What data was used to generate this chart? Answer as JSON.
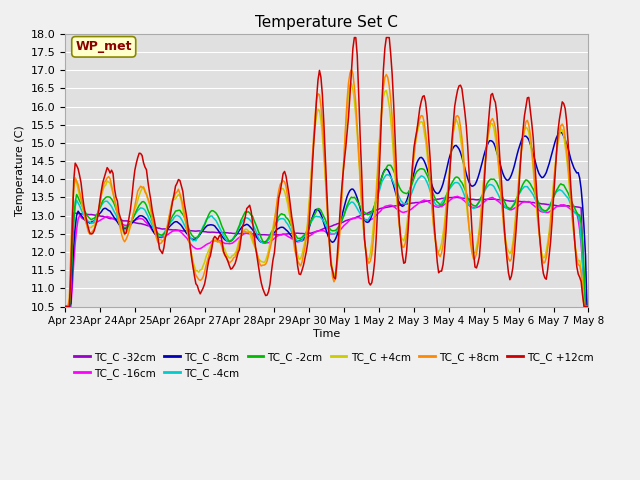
{
  "title": "Temperature Set C",
  "xlabel": "Time",
  "ylabel": "Temperature (C)",
  "ylim": [
    10.5,
    18.0
  ],
  "yticks": [
    10.5,
    11.0,
    11.5,
    12.0,
    12.5,
    13.0,
    13.5,
    14.0,
    14.5,
    15.0,
    15.5,
    16.0,
    16.5,
    17.0,
    17.5,
    18.0
  ],
  "xtick_labels": [
    "Apr 23",
    "Apr 24",
    "Apr 25",
    "Apr 26",
    "Apr 27",
    "Apr 28",
    "Apr 29",
    "Apr 30",
    "May 1",
    "May 2",
    "May 3",
    "May 4",
    "May 5",
    "May 6",
    "May 7",
    "May 8"
  ],
  "wp_met_label": "WP_met",
  "plot_bg": "#e0e0e0",
  "fig_bg": "#f0f0f0",
  "grid_color": "#ffffff",
  "series_colors": [
    "#9900cc",
    "#ff00ff",
    "#0000bb",
    "#00cccc",
    "#00bb00",
    "#cccc00",
    "#ff8800",
    "#cc0000"
  ],
  "series_labels": [
    "TC_C -32cm",
    "TC_C -16cm",
    "TC_C -8cm",
    "TC_C -4cm",
    "TC_C -2cm",
    "TC_C +4cm",
    "TC_C +8cm",
    "TC_C +12cm"
  ]
}
